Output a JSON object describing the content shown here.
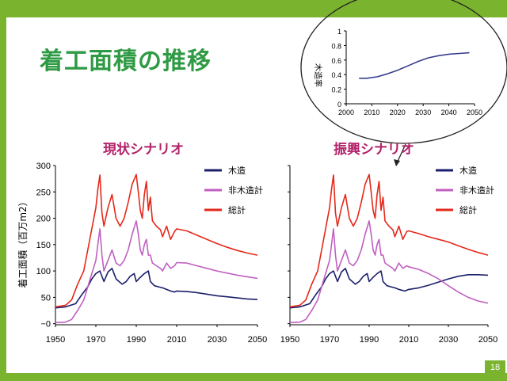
{
  "slide": {
    "title": "着工面積の推移",
    "page_number": "18",
    "colors": {
      "accent_green": "#7ab32e",
      "title_green": "#2f9a44",
      "scenario_title": "#b3226a"
    }
  },
  "chart_data": [
    {
      "type": "line",
      "title": "現状シナリオ",
      "ylabel": "着工面積（百万m2）",
      "xlim": [
        1950,
        2050
      ],
      "ylim": [
        -2,
        300
      ],
      "x_ticks": [
        "1950",
        "1970",
        "1990",
        "2010",
        "2030",
        "2050"
      ],
      "y_ticks": [
        "300",
        "250",
        "200",
        "150",
        "100",
        "50",
        "−0"
      ],
      "y_tick_values": [
        300,
        250,
        200,
        150,
        100,
        50,
        0
      ],
      "series": [
        {
          "name": "木造",
          "color": "#1b1f6b",
          "points": [
            [
              1950,
              30
            ],
            [
              1955,
              32
            ],
            [
              1960,
              38
            ],
            [
              1963,
              55
            ],
            [
              1966,
              70
            ],
            [
              1968,
              85
            ],
            [
              1970,
              95
            ],
            [
              1972,
              100
            ],
            [
              1974,
              80
            ],
            [
              1976,
              98
            ],
            [
              1978,
              105
            ],
            [
              1980,
              85
            ],
            [
              1983,
              75
            ],
            [
              1985,
              80
            ],
            [
              1987,
              90
            ],
            [
              1989,
              95
            ],
            [
              1990,
              80
            ],
            [
              1992,
              88
            ],
            [
              1994,
              95
            ],
            [
              1996,
              100
            ],
            [
              1997,
              80
            ],
            [
              1999,
              72
            ],
            [
              2001,
              70
            ],
            [
              2003,
              68
            ],
            [
              2005,
              65
            ],
            [
              2007,
              62
            ],
            [
              2009,
              60
            ],
            [
              2010,
              62
            ],
            [
              2015,
              61
            ],
            [
              2020,
              59
            ],
            [
              2025,
              56
            ],
            [
              2030,
              53
            ],
            [
              2035,
              51
            ],
            [
              2040,
              49
            ],
            [
              2045,
              47
            ],
            [
              2050,
              46
            ]
          ]
        },
        {
          "name": "非木造計",
          "color": "#c060c0",
          "points": [
            [
              1950,
              2
            ],
            [
              1955,
              3
            ],
            [
              1958,
              8
            ],
            [
              1961,
              25
            ],
            [
              1964,
              45
            ],
            [
              1966,
              70
            ],
            [
              1968,
              95
            ],
            [
              1970,
              120
            ],
            [
              1971,
              150
            ],
            [
              1972,
              180
            ],
            [
              1973,
              130
            ],
            [
              1974,
              100
            ],
            [
              1976,
              120
            ],
            [
              1978,
              140
            ],
            [
              1980,
              115
            ],
            [
              1982,
              110
            ],
            [
              1984,
              120
            ],
            [
              1986,
              140
            ],
            [
              1988,
              170
            ],
            [
              1990,
              195
            ],
            [
              1991,
              170
            ],
            [
              1992,
              140
            ],
            [
              1993,
              130
            ],
            [
              1994,
              150
            ],
            [
              1995,
              160
            ],
            [
              1996,
              130
            ],
            [
              1997,
              130
            ],
            [
              1998,
              115
            ],
            [
              2000,
              110
            ],
            [
              2002,
              105
            ],
            [
              2003,
              100
            ],
            [
              2005,
              115
            ],
            [
              2007,
              105
            ],
            [
              2009,
              110
            ],
            [
              2010,
              116
            ],
            [
              2015,
              115
            ],
            [
              2020,
              110
            ],
            [
              2025,
              105
            ],
            [
              2030,
              100
            ],
            [
              2035,
              96
            ],
            [
              2040,
              92
            ],
            [
              2045,
              89
            ],
            [
              2050,
              86
            ]
          ]
        },
        {
          "name": "総計",
          "color": "#e5281a",
          "points": [
            [
              1950,
              32
            ],
            [
              1955,
              35
            ],
            [
              1958,
              45
            ],
            [
              1961,
              75
            ],
            [
              1964,
              100
            ],
            [
              1966,
              140
            ],
            [
              1968,
              180
            ],
            [
              1970,
              220
            ],
            [
              1971,
              255
            ],
            [
              1972,
              282
            ],
            [
              1973,
              210
            ],
            [
              1974,
              185
            ],
            [
              1976,
              220
            ],
            [
              1978,
              245
            ],
            [
              1980,
              200
            ],
            [
              1982,
              185
            ],
            [
              1984,
              200
            ],
            [
              1986,
              230
            ],
            [
              1988,
              265
            ],
            [
              1990,
              283
            ],
            [
              1991,
              250
            ],
            [
              1992,
              215
            ],
            [
              1993,
              200
            ],
            [
              1994,
              245
            ],
            [
              1995,
              270
            ],
            [
              1996,
              215
            ],
            [
              1997,
              240
            ],
            [
              1998,
              195
            ],
            [
              2000,
              185
            ],
            [
              2002,
              178
            ],
            [
              2003,
              165
            ],
            [
              2005,
              185
            ],
            [
              2007,
              160
            ],
            [
              2009,
              175
            ],
            [
              2010,
              180
            ],
            [
              2015,
              176
            ],
            [
              2020,
              168
            ],
            [
              2025,
              160
            ],
            [
              2030,
              152
            ],
            [
              2035,
              145
            ],
            [
              2040,
              139
            ],
            [
              2045,
              134
            ],
            [
              2050,
              130
            ]
          ]
        }
      ]
    },
    {
      "type": "line",
      "title": "振興シナリオ",
      "xlim": [
        1950,
        2050
      ],
      "ylim": [
        -2,
        300
      ],
      "x_ticks": [
        "1950",
        "1970",
        "1990",
        "2010",
        "2030",
        "2050"
      ],
      "series": [
        {
          "name": "木造",
          "color": "#1b1f6b",
          "points": [
            [
              1950,
              30
            ],
            [
              1955,
              32
            ],
            [
              1960,
              38
            ],
            [
              1963,
              55
            ],
            [
              1966,
              70
            ],
            [
              1968,
              85
            ],
            [
              1970,
              95
            ],
            [
              1972,
              100
            ],
            [
              1974,
              80
            ],
            [
              1976,
              98
            ],
            [
              1978,
              105
            ],
            [
              1980,
              85
            ],
            [
              1983,
              75
            ],
            [
              1985,
              80
            ],
            [
              1987,
              90
            ],
            [
              1989,
              95
            ],
            [
              1990,
              80
            ],
            [
              1992,
              88
            ],
            [
              1994,
              95
            ],
            [
              1996,
              100
            ],
            [
              1997,
              80
            ],
            [
              1999,
              72
            ],
            [
              2001,
              70
            ],
            [
              2003,
              68
            ],
            [
              2005,
              65
            ],
            [
              2008,
              62
            ],
            [
              2010,
              65
            ],
            [
              2015,
              68
            ],
            [
              2020,
              73
            ],
            [
              2025,
              79
            ],
            [
              2030,
              85
            ],
            [
              2035,
              90
            ],
            [
              2040,
              93
            ],
            [
              2045,
              93
            ],
            [
              2050,
              92
            ]
          ]
        },
        {
          "name": "非木造計",
          "color": "#c060c0",
          "points": [
            [
              1950,
              2
            ],
            [
              1955,
              3
            ],
            [
              1958,
              8
            ],
            [
              1961,
              25
            ],
            [
              1964,
              45
            ],
            [
              1966,
              70
            ],
            [
              1968,
              95
            ],
            [
              1970,
              120
            ],
            [
              1971,
              150
            ],
            [
              1972,
              180
            ],
            [
              1973,
              130
            ],
            [
              1974,
              100
            ],
            [
              1976,
              120
            ],
            [
              1978,
              140
            ],
            [
              1980,
              115
            ],
            [
              1982,
              110
            ],
            [
              1984,
              120
            ],
            [
              1986,
              140
            ],
            [
              1988,
              170
            ],
            [
              1990,
              195
            ],
            [
              1991,
              170
            ],
            [
              1992,
              140
            ],
            [
              1993,
              130
            ],
            [
              1994,
              150
            ],
            [
              1995,
              160
            ],
            [
              1996,
              130
            ],
            [
              1997,
              130
            ],
            [
              1998,
              115
            ],
            [
              2000,
              110
            ],
            [
              2002,
              105
            ],
            [
              2003,
              100
            ],
            [
              2005,
              115
            ],
            [
              2007,
              105
            ],
            [
              2009,
              110
            ],
            [
              2010,
              108
            ],
            [
              2015,
              103
            ],
            [
              2020,
              95
            ],
            [
              2025,
              85
            ],
            [
              2030,
              72
            ],
            [
              2035,
              60
            ],
            [
              2040,
              50
            ],
            [
              2045,
              43
            ],
            [
              2050,
              39
            ]
          ]
        },
        {
          "name": "総計",
          "color": "#e5281a",
          "points": [
            [
              1950,
              32
            ],
            [
              1955,
              35
            ],
            [
              1958,
              45
            ],
            [
              1961,
              75
            ],
            [
              1964,
              100
            ],
            [
              1966,
              140
            ],
            [
              1968,
              180
            ],
            [
              1970,
              220
            ],
            [
              1971,
              255
            ],
            [
              1972,
              282
            ],
            [
              1973,
              210
            ],
            [
              1974,
              185
            ],
            [
              1976,
              220
            ],
            [
              1978,
              245
            ],
            [
              1980,
              200
            ],
            [
              1982,
              185
            ],
            [
              1984,
              200
            ],
            [
              1986,
              230
            ],
            [
              1988,
              265
            ],
            [
              1990,
              283
            ],
            [
              1991,
              250
            ],
            [
              1992,
              215
            ],
            [
              1993,
              200
            ],
            [
              1994,
              245
            ],
            [
              1995,
              270
            ],
            [
              1996,
              215
            ],
            [
              1997,
              240
            ],
            [
              1998,
              195
            ],
            [
              2000,
              185
            ],
            [
              2002,
              178
            ],
            [
              2003,
              165
            ],
            [
              2005,
              185
            ],
            [
              2007,
              160
            ],
            [
              2009,
              175
            ],
            [
              2010,
              176
            ],
            [
              2015,
              171
            ],
            [
              2020,
              165
            ],
            [
              2025,
              160
            ],
            [
              2030,
              155
            ],
            [
              2035,
              148
            ],
            [
              2040,
              141
            ],
            [
              2045,
              135
            ],
            [
              2050,
              130
            ]
          ]
        }
      ]
    },
    {
      "type": "line",
      "title": "",
      "ylabel": "木造率",
      "xlim": [
        2000,
        2050
      ],
      "ylim": [
        0,
        1
      ],
      "x_ticks": [
        "2000",
        "2010",
        "2020",
        "2030",
        "2040",
        "2050"
      ],
      "y_ticks": [
        "1",
        "0.8",
        "0.6",
        "0.4",
        "0.2",
        "0"
      ],
      "y_tick_values": [
        1,
        0.8,
        0.6,
        0.4,
        0.2,
        0
      ],
      "series": [
        {
          "name": "木造率",
          "color": "#3a3d8f",
          "points": [
            [
              2005,
              0.35
            ],
            [
              2008,
              0.35
            ],
            [
              2012,
              0.37
            ],
            [
              2016,
              0.41
            ],
            [
              2020,
              0.46
            ],
            [
              2024,
              0.52
            ],
            [
              2028,
              0.58
            ],
            [
              2032,
              0.63
            ],
            [
              2036,
              0.66
            ],
            [
              2040,
              0.68
            ],
            [
              2044,
              0.69
            ],
            [
              2048,
              0.7
            ]
          ]
        }
      ]
    }
  ]
}
